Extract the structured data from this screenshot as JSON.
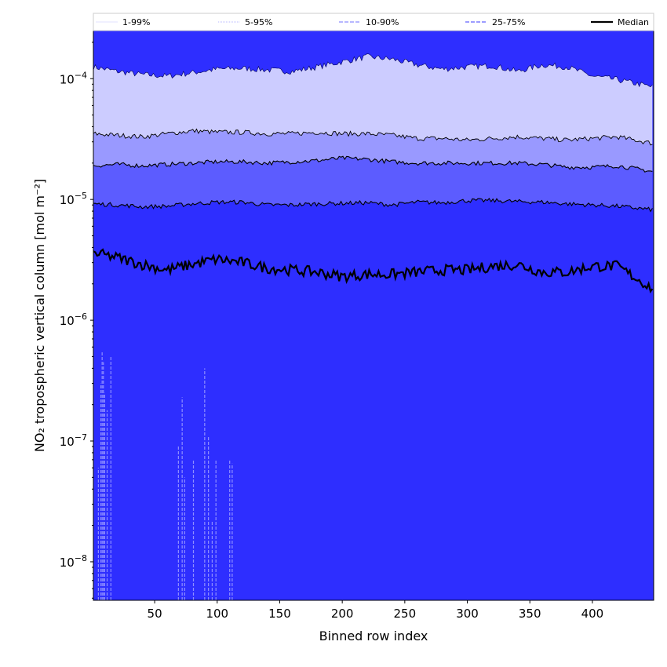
{
  "chart_data": {
    "type": "area",
    "xlabel": "Binned row index",
    "ylabel": "NO₂ tropospheric vertical column [mol m⁻²]",
    "y_scale": "log",
    "xlim": [
      1,
      449
    ],
    "ylim": [
      4.8e-09,
      0.00025
    ],
    "x_ticks": [
      50,
      100,
      150,
      200,
      250,
      300,
      350,
      400
    ],
    "y_ticks": [
      {
        "value": 1e-08,
        "base": "10",
        "exp": "−8"
      },
      {
        "value": 1e-07,
        "base": "10",
        "exp": "−7"
      },
      {
        "value": 1e-06,
        "base": "10",
        "exp": "−6"
      },
      {
        "value": 1e-05,
        "base": "10",
        "exp": "−5"
      },
      {
        "value": 0.0001,
        "base": "10",
        "exp": "−4"
      }
    ],
    "legend_position": "top",
    "legend": [
      {
        "label": "1-99%",
        "color": "#e0e0ff",
        "style": "thin-solid"
      },
      {
        "label": "5-95%",
        "color": "#b8b8ff",
        "style": "thin-dotted"
      },
      {
        "label": "10-90%",
        "color": "#8c8cff",
        "style": "dashed"
      },
      {
        "label": "25-75%",
        "color": "#6060ff",
        "style": "dashed"
      },
      {
        "label": "Median",
        "color": "#000000",
        "style": "thick-solid"
      }
    ],
    "band_colors": {
      "outer": "#ccccff",
      "p5_95": "#9999ff",
      "p10_90": "#5c5cff",
      "p25_75": "#2e2eff"
    },
    "x": [
      1,
      20,
      40,
      60,
      80,
      100,
      120,
      140,
      160,
      180,
      200,
      220,
      240,
      260,
      280,
      300,
      320,
      340,
      360,
      380,
      400,
      420,
      449
    ],
    "series": [
      {
        "name": "1-99%",
        "values_upper": [
          0.000125,
          0.000115,
          0.000108,
          0.000105,
          0.000112,
          0.00012,
          0.000122,
          0.000118,
          0.000115,
          0.000125,
          0.000138,
          0.000152,
          0.000145,
          0.00013,
          0.00012,
          0.000125,
          0.000128,
          0.000115,
          0.00013,
          0.000125,
          0.000105,
          9.8e-05,
          8.5e-05
        ]
      },
      {
        "name": "5-95%",
        "values_upper": [
          3.5e-05,
          3.4e-05,
          3.3e-05,
          3.5e-05,
          3.7e-05,
          3.6e-05,
          3.6e-05,
          3.5e-05,
          3.5e-05,
          3.6e-05,
          3.5e-05,
          3.5e-05,
          3.4e-05,
          3.2e-05,
          3.2e-05,
          3.1e-05,
          3.2e-05,
          3.3e-05,
          3.2e-05,
          3.1e-05,
          3.2e-05,
          3.3e-05,
          2.9e-05
        ]
      },
      {
        "name": "10-90%",
        "values_upper": [
          1.9e-05,
          1.95e-05,
          1.9e-05,
          1.95e-05,
          2e-05,
          2.05e-05,
          2.05e-05,
          2e-05,
          2.05e-05,
          2.1e-05,
          2.2e-05,
          2.15e-05,
          2.05e-05,
          2e-05,
          2e-05,
          2e-05,
          2e-05,
          2e-05,
          1.95e-05,
          1.85e-05,
          1.85e-05,
          1.9e-05,
          1.7e-05
        ]
      },
      {
        "name": "25-75%",
        "values_upper": [
          9.2e-06,
          9e-06,
          8.7e-06,
          8.8e-06,
          9.2e-06,
          9.5e-06,
          9.5e-06,
          9e-06,
          9e-06,
          9.2e-06,
          9.3e-06,
          9.4e-06,
          9e-06,
          9.5e-06,
          9.4e-06,
          9.8e-06,
          9.8e-06,
          9.6e-06,
          9.5e-06,
          9.2e-06,
          9e-06,
          8.8e-06,
          8.2e-06
        ]
      },
      {
        "name": "Median",
        "values": [
          3.6e-06,
          3.3e-06,
          2.9e-06,
          2.6e-06,
          2.9e-06,
          3.2e-06,
          3e-06,
          2.7e-06,
          2.6e-06,
          2.5e-06,
          2.3e-06,
          2.4e-06,
          2.4e-06,
          2.5e-06,
          2.6e-06,
          2.6e-06,
          2.8e-06,
          2.9e-06,
          2.5e-06,
          2.5e-06,
          2.8e-06,
          2.8e-06,
          1.8e-06
        ]
      }
    ],
    "lower_tail_spikes": [
      {
        "x": 5,
        "y": 6e-08
      },
      {
        "x": 7,
        "y": 3e-07
      },
      {
        "x": 8,
        "y": 5.5e-07
      },
      {
        "x": 9,
        "y": 4.5e-07
      },
      {
        "x": 10,
        "y": 2.5e-07
      },
      {
        "x": 12,
        "y": 1.8e-07
      },
      {
        "x": 15,
        "y": 5e-07
      },
      {
        "x": 69,
        "y": 9e-08
      },
      {
        "x": 72,
        "y": 2.3e-07
      },
      {
        "x": 74,
        "y": 5e-08
      },
      {
        "x": 81,
        "y": 7e-08
      },
      {
        "x": 90,
        "y": 4e-07
      },
      {
        "x": 93,
        "y": 1.1e-07
      },
      {
        "x": 96,
        "y": 2.2e-08
      },
      {
        "x": 99,
        "y": 7e-08
      },
      {
        "x": 110,
        "y": 7e-08
      },
      {
        "x": 112,
        "y": 6.5e-08
      }
    ]
  }
}
